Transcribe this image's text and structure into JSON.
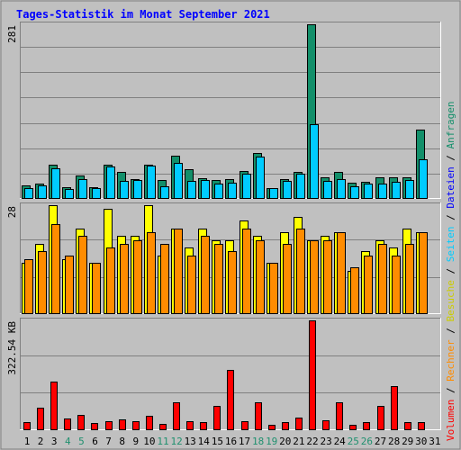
{
  "title": "Tages-Statistik im Monat September 2021",
  "colors": {
    "page_bg": "#c0c0c0",
    "plot_bg": "#c0c0c0",
    "grid": "#808080",
    "title": "#0000ff",
    "anfragen": "#138f6a",
    "dateien": "#00ccff",
    "seiten": "#00e0ff",
    "besuche": "#ffff00",
    "rechner": "#ff8c00",
    "volumen": "#ff0000",
    "weekend_day": "#20906f",
    "weekday": "#000000"
  },
  "legend_right": [
    {
      "text": "Volumen",
      "color": "#ff0000"
    },
    {
      "text": " / ",
      "color": "#000000"
    },
    {
      "text": "Rechner",
      "color": "#ff8c00"
    },
    {
      "text": " / ",
      "color": "#000000"
    },
    {
      "text": "Besuche",
      "color": "#cccc00"
    },
    {
      "text": " / ",
      "color": "#000000"
    },
    {
      "text": "Seiten",
      "color": "#00ccff"
    },
    {
      "text": " / ",
      "color": "#000000"
    },
    {
      "text": "Dateien",
      "color": "#0000ff"
    },
    {
      "text": " / ",
      "color": "#000000"
    },
    {
      "text": "Anfragen",
      "color": "#138f6a"
    }
  ],
  "chart_data": [
    {
      "type": "bar",
      "panel": "top",
      "axis_label": "281",
      "ylim": [
        0,
        281
      ],
      "grid": true,
      "x": [
        1,
        2,
        3,
        4,
        5,
        6,
        7,
        8,
        9,
        10,
        11,
        12,
        13,
        14,
        15,
        16,
        17,
        18,
        19,
        20,
        21,
        22,
        23,
        24,
        25,
        26,
        27,
        28,
        29,
        30,
        31
      ],
      "series": [
        {
          "name": "Anfragen",
          "values": [
            20,
            24,
            54,
            17,
            36,
            18,
            54,
            42,
            30,
            54,
            29,
            68,
            46,
            32,
            29,
            31,
            43,
            73,
            16,
            31,
            42,
            281,
            34,
            42,
            25,
            26,
            33,
            33,
            33,
            111,
            0
          ]
        },
        {
          "name": "Dateien",
          "values": [
            16,
            20,
            48,
            14,
            30,
            16,
            51,
            27,
            29,
            52,
            19,
            57,
            28,
            29,
            24,
            25,
            39,
            67,
            16,
            28,
            40,
            120,
            28,
            31,
            19,
            24,
            24,
            26,
            29,
            63,
            0
          ]
        },
        {
          "name": "Seiten",
          "values": [
            16,
            20,
            48,
            14,
            30,
            16,
            51,
            27,
            29,
            52,
            19,
            57,
            28,
            29,
            24,
            25,
            39,
            67,
            16,
            28,
            40,
            120,
            28,
            31,
            19,
            24,
            24,
            26,
            29,
            63,
            0
          ]
        }
      ]
    },
    {
      "type": "bar",
      "panel": "middle",
      "axis_label": "28",
      "ylim": [
        0,
        28
      ],
      "grid": true,
      "x": [
        1,
        2,
        3,
        4,
        5,
        6,
        7,
        8,
        9,
        10,
        11,
        12,
        13,
        14,
        15,
        16,
        17,
        18,
        19,
        20,
        21,
        22,
        23,
        24,
        25,
        26,
        27,
        28,
        29,
        30,
        31
      ],
      "series": [
        {
          "name": "Besuche",
          "values": [
            13,
            18,
            28,
            14,
            22,
            13,
            27,
            20,
            20,
            28,
            15,
            22,
            17,
            22,
            19,
            19,
            24,
            20,
            13,
            21,
            25,
            19,
            20,
            21,
            11,
            16,
            19,
            17,
            22,
            21,
            0
          ]
        },
        {
          "name": "Rechner",
          "values": [
            14,
            16,
            23,
            15,
            20,
            13,
            17,
            18,
            19,
            21,
            18,
            22,
            15,
            20,
            18,
            16,
            22,
            19,
            13,
            18,
            22,
            19,
            19,
            21,
            12,
            15,
            18,
            15,
            18,
            21,
            0
          ]
        }
      ]
    },
    {
      "type": "bar",
      "panel": "bottom",
      "axis_label": "322.54 KB",
      "ylim": [
        0,
        322.54
      ],
      "grid": true,
      "x": [
        1,
        2,
        3,
        4,
        5,
        6,
        7,
        8,
        9,
        10,
        11,
        12,
        13,
        14,
        15,
        16,
        17,
        18,
        19,
        20,
        21,
        22,
        23,
        24,
        25,
        26,
        27,
        28,
        29,
        30,
        31
      ],
      "series": [
        {
          "name": "Volumen",
          "values": [
            22,
            65,
            140,
            32,
            42,
            19,
            25,
            29,
            24,
            39,
            16,
            79,
            24,
            21,
            70,
            177,
            25,
            80,
            14,
            22,
            34,
            322.54,
            26,
            80,
            14,
            20,
            69,
            127,
            22,
            22,
            0
          ]
        }
      ]
    }
  ],
  "days": [
    {
      "label": "1",
      "weekend": false
    },
    {
      "label": "2",
      "weekend": false
    },
    {
      "label": "3",
      "weekend": false
    },
    {
      "label": "4",
      "weekend": true
    },
    {
      "label": "5",
      "weekend": true
    },
    {
      "label": "6",
      "weekend": false
    },
    {
      "label": "7",
      "weekend": false
    },
    {
      "label": "8",
      "weekend": false
    },
    {
      "label": "9",
      "weekend": false
    },
    {
      "label": "10",
      "weekend": false
    },
    {
      "label": "11",
      "weekend": true
    },
    {
      "label": "12",
      "weekend": true
    },
    {
      "label": "13",
      "weekend": false
    },
    {
      "label": "14",
      "weekend": false
    },
    {
      "label": "15",
      "weekend": false
    },
    {
      "label": "16",
      "weekend": false
    },
    {
      "label": "17",
      "weekend": false
    },
    {
      "label": "18",
      "weekend": true
    },
    {
      "label": "19",
      "weekend": true
    },
    {
      "label": "20",
      "weekend": false
    },
    {
      "label": "21",
      "weekend": false
    },
    {
      "label": "22",
      "weekend": false
    },
    {
      "label": "23",
      "weekend": false
    },
    {
      "label": "24",
      "weekend": false
    },
    {
      "label": "25",
      "weekend": true
    },
    {
      "label": "26",
      "weekend": true
    },
    {
      "label": "27",
      "weekend": false
    },
    {
      "label": "28",
      "weekend": false
    },
    {
      "label": "29",
      "weekend": false
    },
    {
      "label": "30",
      "weekend": false
    },
    {
      "label": "31",
      "weekend": false
    }
  ]
}
